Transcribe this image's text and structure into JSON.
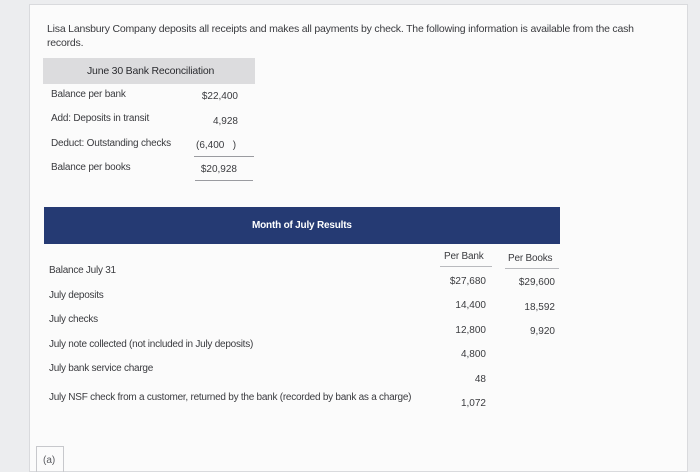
{
  "intro": "Lisa Lansbury Company deposits all receipts and makes all payments by check. The following information is available from the cash records.",
  "reconciliation": {
    "title": "June 30 Bank Reconciliation",
    "rows": [
      {
        "label": "Balance per bank",
        "value": "$22,400"
      },
      {
        "label": "Add: Deposits in transit",
        "value": "4,928"
      },
      {
        "label": "Deduct: Outstanding checks",
        "value": "(6,400   )"
      },
      {
        "label": "Balance per books",
        "value": "$20,928"
      }
    ]
  },
  "july": {
    "title": "Month of July Results",
    "columns": {
      "bank": "Per Bank",
      "books": "Per Books"
    },
    "items": [
      "Balance July 31",
      "July deposits",
      "July checks",
      "July note collected (not included in July deposits)",
      "July bank service charge",
      "July NSF check from a customer, returned by the bank (recorded by bank as a charge)"
    ],
    "bank_values": [
      "$27,680",
      "14,400",
      "12,800",
      "4,800",
      "48",
      "1,072"
    ],
    "book_values": [
      "$29,600",
      "18,592",
      "9,920"
    ]
  },
  "part_label": "(a)"
}
